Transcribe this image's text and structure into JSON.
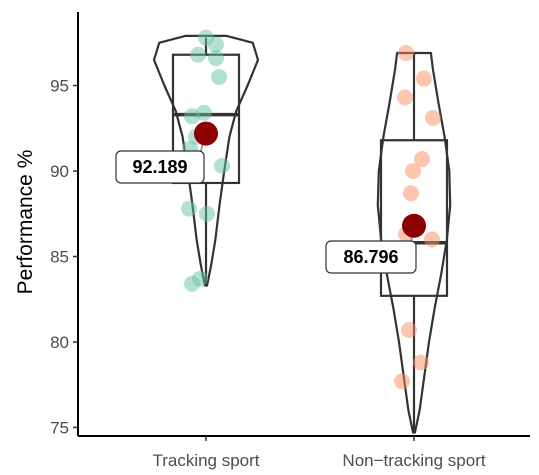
{
  "chart_data": {
    "type": "violin",
    "title": "",
    "xlabel": "",
    "ylabel": "Performance %",
    "ylim": [
      74.5,
      99.3
    ],
    "yticks": [
      75,
      80,
      85,
      90,
      95
    ],
    "grid": false,
    "legend": "none",
    "categories": [
      "Tracking sport",
      "Non−tracking sport"
    ],
    "groups": [
      {
        "name": "Tracking sport",
        "point_color": "#66c2a5",
        "box": {
          "q1": 89.3,
          "median": 93.3,
          "q3": 96.8,
          "whisker_low": 83.3,
          "whisker_high": 97.8
        },
        "violin_profile": [
          [
            83.3,
            0.02
          ],
          [
            84.5,
            0.1
          ],
          [
            86.0,
            0.18
          ],
          [
            88.0,
            0.26
          ],
          [
            90.0,
            0.35
          ],
          [
            92.0,
            0.45
          ],
          [
            93.5,
            0.58
          ],
          [
            95.0,
            0.8
          ],
          [
            96.5,
            1.0
          ],
          [
            97.5,
            0.9
          ],
          [
            97.9,
            0.4
          ]
        ],
        "points": [
          97.8,
          97.4,
          96.8,
          96.6,
          95.5,
          93.4,
          93.2,
          92.0,
          91.3,
          90.3,
          87.8,
          87.5,
          83.7,
          83.4
        ],
        "mean": 92.189,
        "mean_label": "92.189"
      },
      {
        "name": "Non−tracking sport",
        "point_color": "#fc8d62",
        "box": {
          "q1": 82.7,
          "median": 85.8,
          "q3": 91.8,
          "whisker_low": 74.7,
          "whisker_high": 96.9
        },
        "violin_profile": [
          [
            74.7,
            0.02
          ],
          [
            76.0,
            0.12
          ],
          [
            78.0,
            0.22
          ],
          [
            80.0,
            0.32
          ],
          [
            82.0,
            0.44
          ],
          [
            84.0,
            0.58
          ],
          [
            86.0,
            0.7
          ],
          [
            88.0,
            0.77
          ],
          [
            90.0,
            0.75
          ],
          [
            92.0,
            0.65
          ],
          [
            94.0,
            0.52
          ],
          [
            96.0,
            0.4
          ],
          [
            96.9,
            0.36
          ]
        ],
        "points": [
          96.9,
          95.4,
          94.3,
          93.1,
          90.7,
          90.0,
          88.7,
          86.3,
          86.0,
          80.7,
          78.8,
          77.7
        ],
        "mean": 86.796,
        "mean_label": "86.796"
      }
    ],
    "mean_marker_color": "#8b0000"
  }
}
